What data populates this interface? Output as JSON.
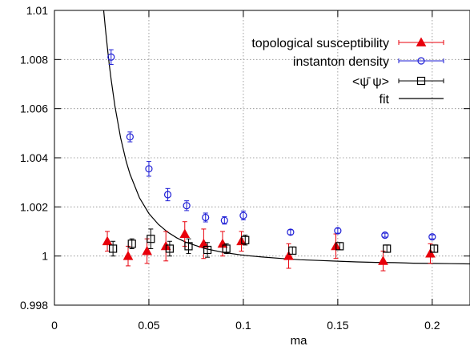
{
  "chart_data": {
    "type": "scatter",
    "xlabel": "ma",
    "ylabel": "",
    "xlim": [
      0,
      0.22
    ],
    "ylim": [
      0.998,
      1.01
    ],
    "x_ticks": [
      0,
      0.05,
      0.1,
      0.15,
      0.2
    ],
    "x_tick_labels": [
      "0",
      "0.05",
      "0.1",
      "0.15",
      "0.2"
    ],
    "y_ticks": [
      0.998,
      1,
      1.002,
      1.004,
      1.006,
      1.008,
      1.01
    ],
    "y_tick_labels": [
      "0.998",
      "1",
      "1.002",
      "1.004",
      "1.006",
      "1.008",
      "1.01"
    ],
    "grid": true,
    "legend_position": "top-right",
    "series": [
      {
        "name": "topological susceptibility",
        "marker": "filled-triangle",
        "color": "#e8000b",
        "points": [
          {
            "x": 0.028,
            "y": 1.0006,
            "err": 0.0004
          },
          {
            "x": 0.039,
            "y": 1.0,
            "err": 0.0004
          },
          {
            "x": 0.049,
            "y": 1.0002,
            "err": 0.0005
          },
          {
            "x": 0.059,
            "y": 1.0004,
            "err": 0.0006
          },
          {
            "x": 0.069,
            "y": 1.0009,
            "err": 0.0005
          },
          {
            "x": 0.079,
            "y": 1.0005,
            "err": 0.0006
          },
          {
            "x": 0.089,
            "y": 1.0005,
            "err": 0.0005
          },
          {
            "x": 0.099,
            "y": 1.0006,
            "err": 0.0004
          },
          {
            "x": 0.124,
            "y": 1.0,
            "err": 0.0005
          },
          {
            "x": 0.149,
            "y": 1.0004,
            "err": 0.0005
          },
          {
            "x": 0.174,
            "y": 0.9998,
            "err": 0.0004
          },
          {
            "x": 0.199,
            "y": 1.0001,
            "err": 0.0004
          }
        ]
      },
      {
        "name": "instanton density",
        "marker": "open-circle",
        "color": "#1f1fd6",
        "points": [
          {
            "x": 0.03,
            "y": 1.0081,
            "err": 0.0003
          },
          {
            "x": 0.04,
            "y": 1.00485,
            "err": 0.0002
          },
          {
            "x": 0.05,
            "y": 1.00355,
            "err": 0.0003
          },
          {
            "x": 0.06,
            "y": 1.0025,
            "err": 0.00025
          },
          {
            "x": 0.07,
            "y": 1.00205,
            "err": 0.0002
          },
          {
            "x": 0.08,
            "y": 1.00157,
            "err": 0.00018
          },
          {
            "x": 0.09,
            "y": 1.00145,
            "err": 0.00015
          },
          {
            "x": 0.1,
            "y": 1.00165,
            "err": 0.00018
          },
          {
            "x": 0.125,
            "y": 1.00097,
            "err": 0.0001
          },
          {
            "x": 0.15,
            "y": 1.00103,
            "err": 0.0001
          },
          {
            "x": 0.175,
            "y": 1.00085,
            "err": 8e-05
          },
          {
            "x": 0.2,
            "y": 1.00078,
            "err": 8e-05
          }
        ]
      },
      {
        "name": "<ψ̄ ψ>",
        "marker": "open-square",
        "color": "#000000",
        "points": [
          {
            "x": 0.031,
            "y": 1.0003,
            "err": 0.0003
          },
          {
            "x": 0.041,
            "y": 1.0005,
            "err": 0.0002
          },
          {
            "x": 0.051,
            "y": 1.0007,
            "err": 0.0004
          },
          {
            "x": 0.061,
            "y": 1.0003,
            "err": 0.0003
          },
          {
            "x": 0.071,
            "y": 1.0004,
            "err": 0.0003
          },
          {
            "x": 0.081,
            "y": 1.00025,
            "err": 0.0003
          },
          {
            "x": 0.091,
            "y": 1.0003,
            "err": 0.0002
          },
          {
            "x": 0.101,
            "y": 1.00065,
            "err": 0.0002
          },
          {
            "x": 0.126,
            "y": 1.00022,
            "err": 0.00015
          },
          {
            "x": 0.151,
            "y": 1.0004,
            "err": 0.00015
          },
          {
            "x": 0.176,
            "y": 1.0003,
            "err": 0.00015
          },
          {
            "x": 0.201,
            "y": 1.0003,
            "err": 0.00015
          }
        ]
      },
      {
        "name": "fit",
        "type": "line",
        "color": "#000000",
        "x": [
          0.025,
          0.026,
          0.027,
          0.028,
          0.029,
          0.03,
          0.032,
          0.035,
          0.038,
          0.04,
          0.045,
          0.05,
          0.055,
          0.06,
          0.065,
          0.07,
          0.08,
          0.09,
          0.1,
          0.11,
          0.12,
          0.13,
          0.14,
          0.15,
          0.16,
          0.17,
          0.18,
          0.19,
          0.2,
          0.21,
          0.22
        ],
        "y": [
          1.01097,
          1.01006,
          1.00924,
          1.00849,
          1.00781,
          1.00719,
          1.00611,
          1.00482,
          1.00385,
          1.00333,
          1.00237,
          1.00173,
          1.00129,
          1.00097,
          1.00073,
          1.00055,
          1.0003,
          1.00014,
          1.00003,
          0.99996,
          0.9999,
          0.99985,
          0.99982,
          0.99979,
          0.99976,
          0.99974,
          0.99973,
          0.99971,
          0.9997,
          0.99969,
          0.99968
        ]
      }
    ]
  }
}
